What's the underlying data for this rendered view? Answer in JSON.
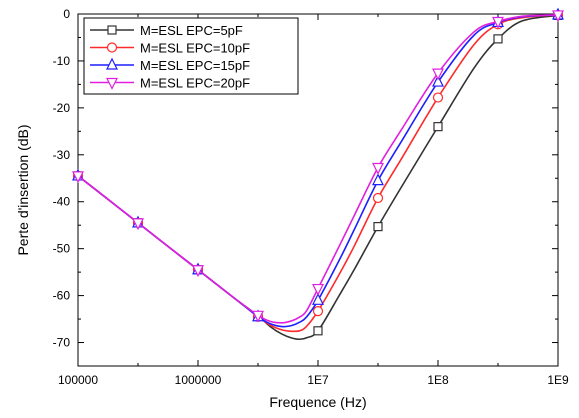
{
  "chart_data": {
    "type": "line",
    "xlabel": "Frequence (Hz)",
    "ylabel": "Perte d'insertion (dB)",
    "x_scale": "log",
    "xlim": [
      100000,
      1000000000
    ],
    "ylim": [
      -75,
      0
    ],
    "x_ticks": [
      {
        "value": 100000,
        "label": "100000"
      },
      {
        "value": 1000000,
        "label": "1000000"
      },
      {
        "value": 10000000,
        "label": "1E7"
      },
      {
        "value": 100000000,
        "label": "1E8"
      },
      {
        "value": 1000000000,
        "label": "1E9"
      }
    ],
    "y_ticks": [
      {
        "value": 0,
        "label": "0"
      },
      {
        "value": -10,
        "label": "-10"
      },
      {
        "value": -20,
        "label": "-20"
      },
      {
        "value": -30,
        "label": "-30"
      },
      {
        "value": -40,
        "label": "-40"
      },
      {
        "value": -50,
        "label": "-50"
      },
      {
        "value": -60,
        "label": "-60"
      },
      {
        "value": -70,
        "label": "-70"
      }
    ],
    "grid": false,
    "legend_position": "top-left",
    "series": [
      {
        "name": "M=ESL EPC=5pF",
        "color": "#333333",
        "marker": "square",
        "x": [
          100000,
          200000,
          316228,
          500000,
          1000000,
          2000000,
          3162278,
          4000000,
          5000000,
          6000000,
          7000000,
          8000000,
          10000000,
          15000000,
          20000000,
          31622777,
          50000000,
          100000000,
          200000000,
          316227766,
          500000000,
          1000000000
        ],
        "y": [
          -34.5,
          -40.5,
          -44.5,
          -48.5,
          -54.5,
          -60.5,
          -64.3,
          -66.6,
          -68.2,
          -69.0,
          -69.3,
          -69.0,
          -67.5,
          -60.0,
          -54.5,
          -45.3,
          -36.7,
          -24.0,
          -11.5,
          -5.3,
          -1.5,
          -0.3
        ],
        "marker_x": [
          100000,
          316228,
          1000000,
          3162278,
          10000000,
          31622777,
          100000000,
          316227766,
          1000000000
        ],
        "marker_y": [
          -34.5,
          -44.5,
          -54.5,
          -64.3,
          -67.5,
          -45.3,
          -24.0,
          -5.3,
          -0.3
        ]
      },
      {
        "name": "M=ESL EPC=10pF",
        "color": "#ff2a2a",
        "marker": "circle",
        "x": [
          100000,
          200000,
          316228,
          500000,
          1000000,
          2000000,
          3162278,
          4000000,
          5000000,
          6000000,
          7000000,
          8000000,
          10000000,
          15000000,
          20000000,
          31622777,
          50000000,
          100000000,
          200000000,
          316227766,
          500000000,
          1000000000
        ],
        "y": [
          -34.5,
          -40.5,
          -44.5,
          -48.5,
          -54.5,
          -60.5,
          -64.5,
          -66.3,
          -67.3,
          -67.6,
          -67.5,
          -66.6,
          -63.3,
          -55.5,
          -49.5,
          -39.2,
          -30.7,
          -17.8,
          -6.5,
          -2.2,
          -0.8,
          -0.2
        ],
        "marker_x": [
          100000,
          316228,
          1000000,
          3162278,
          10000000,
          31622777,
          100000000,
          316227766,
          1000000000
        ],
        "marker_y": [
          -34.5,
          -44.5,
          -54.5,
          -64.5,
          -63.3,
          -39.2,
          -17.8,
          -2.2,
          -0.2
        ]
      },
      {
        "name": "M=ESL EPC=15pF",
        "color": "#1e1eff",
        "marker": "triangle-up",
        "x": [
          100000,
          200000,
          316228,
          500000,
          1000000,
          2000000,
          3162278,
          4000000,
          5000000,
          6000000,
          7000000,
          8000000,
          10000000,
          15000000,
          20000000,
          31622777,
          50000000,
          100000000,
          200000000,
          316227766,
          500000000,
          1000000000
        ],
        "y": [
          -34.5,
          -40.5,
          -44.5,
          -48.5,
          -54.5,
          -60.5,
          -64.5,
          -66.0,
          -66.6,
          -66.4,
          -65.7,
          -64.6,
          -61.0,
          -52.5,
          -46.0,
          -35.5,
          -27.0,
          -14.5,
          -4.5,
          -1.8,
          -0.6,
          -0.2
        ],
        "marker_x": [
          100000,
          316228,
          1000000,
          3162278,
          10000000,
          31622777,
          100000000,
          316227766,
          1000000000
        ],
        "marker_y": [
          -34.5,
          -44.5,
          -54.5,
          -64.5,
          -61.0,
          -35.5,
          -14.5,
          -1.8,
          -0.2
        ]
      },
      {
        "name": "M=ESL EPC=20pF",
        "color": "#e020e0",
        "marker": "triangle-down",
        "x": [
          100000,
          200000,
          316228,
          500000,
          1000000,
          2000000,
          3162278,
          4000000,
          5000000,
          6000000,
          7000000,
          8000000,
          10000000,
          15000000,
          20000000,
          31622777,
          50000000,
          100000000,
          200000000,
          316227766,
          500000000,
          1000000000
        ],
        "y": [
          -34.5,
          -40.5,
          -44.5,
          -48.5,
          -54.5,
          -60.5,
          -64.2,
          -65.5,
          -65.8,
          -65.4,
          -64.6,
          -63.3,
          -58.5,
          -49.5,
          -43.0,
          -32.7,
          -24.5,
          -12.6,
          -3.8,
          -1.6,
          -0.5,
          -0.2
        ],
        "marker_x": [
          100000,
          316228,
          1000000,
          3162278,
          10000000,
          31622777,
          100000000,
          316227766,
          1000000000
        ],
        "marker_y": [
          -34.5,
          -44.5,
          -54.5,
          -64.2,
          -58.5,
          -32.7,
          -12.6,
          -1.6,
          -0.2
        ]
      }
    ]
  }
}
